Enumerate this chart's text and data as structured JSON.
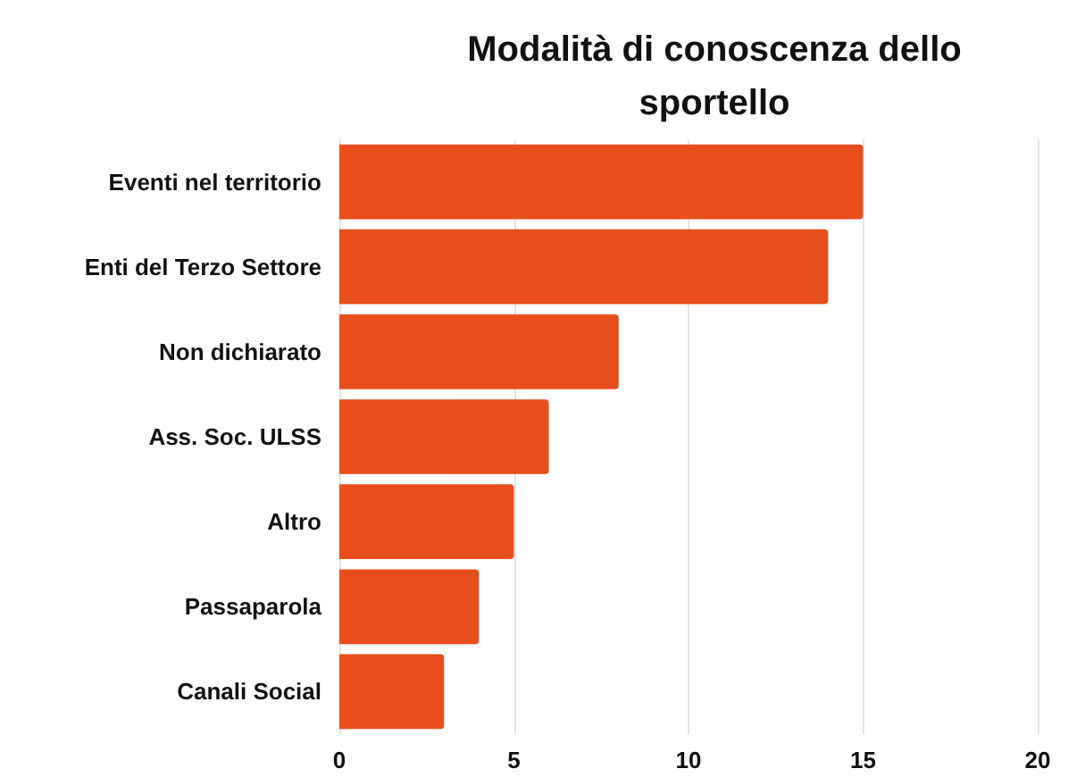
{
  "chart_data": {
    "type": "bar",
    "orientation": "horizontal",
    "title": "Modalità di conoscenza dello\nsportello",
    "categories": [
      "Eventi nel territorio",
      "Enti del Terzo Settore",
      "Non dichiarato",
      "Ass. Soc. ULSS",
      "Altro",
      "Passaparola",
      "Canali Social"
    ],
    "values": [
      15,
      14,
      8,
      6,
      5,
      4,
      3
    ],
    "color": "#e84e1b",
    "xlim": [
      0,
      20
    ],
    "xticks": [
      0,
      5,
      10,
      15,
      20
    ],
    "grid": "x"
  }
}
